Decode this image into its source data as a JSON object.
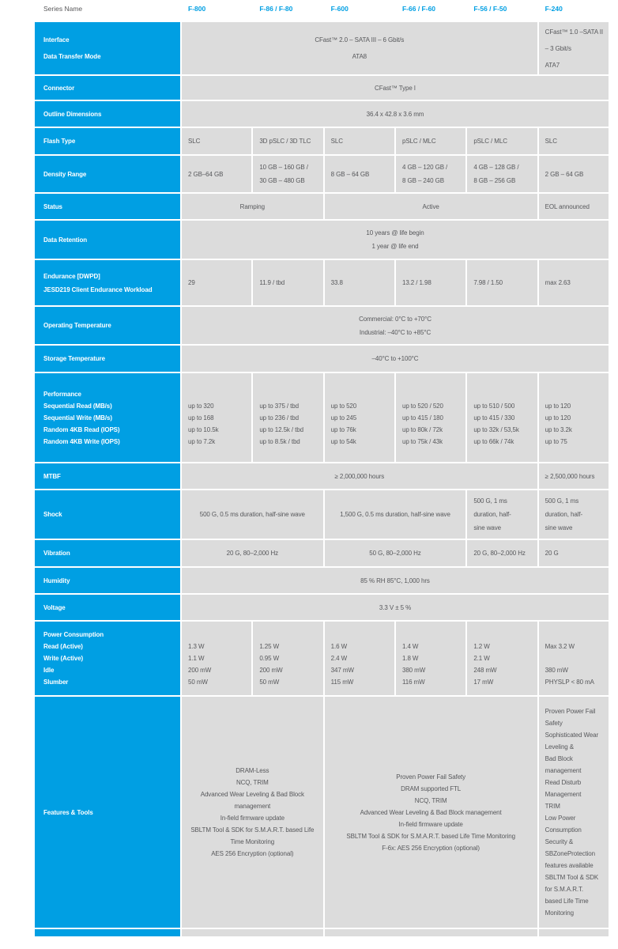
{
  "header": {
    "series_label": "Series Name",
    "columns": [
      "F-800",
      "F-86 / F-80",
      "F-600",
      "F-66 / F-60",
      "F-56 / F-50",
      "F-240"
    ]
  },
  "colors": {
    "brand_blue": "#009fe3",
    "cell_background": "#dcdcdc",
    "cell_text": "#57585b",
    "label_text": "#ffffff",
    "header_gray_text": "#58585a"
  },
  "table": {
    "rows": [
      {
        "id": "interface",
        "label": [
          "Interface",
          "Data Transfer Mode"
        ],
        "cells": [
          {
            "span": 5,
            "lines": [
              "CFast™ 2.0 – SATA III – 6 Gbit/s",
              "ATA8"
            ]
          },
          {
            "span": 1,
            "lines": [
              "CFast™ 1.0 –SATA II",
              "– 3 Gbit/s",
              "ATA7"
            ]
          }
        ]
      },
      {
        "id": "connector",
        "label": [
          "Connector"
        ],
        "cells": [
          {
            "span": 6,
            "lines": [
              "CFast™ Type I"
            ]
          }
        ]
      },
      {
        "id": "outline-dimensions",
        "label": [
          "Outline Dimensions"
        ],
        "cells": [
          {
            "span": 6,
            "lines": [
              "36.4 x 42.8 x 3.6 mm"
            ]
          }
        ]
      },
      {
        "id": "flash-type",
        "label": [
          "Flash Type"
        ],
        "cells": [
          {
            "span": 1,
            "lines": [
              "SLC"
            ]
          },
          {
            "span": 1,
            "lines": [
              "3D pSLC / 3D TLC"
            ]
          },
          {
            "span": 1,
            "lines": [
              "SLC"
            ]
          },
          {
            "span": 1,
            "lines": [
              "pSLC / MLC"
            ]
          },
          {
            "span": 1,
            "lines": [
              "pSLC / MLC"
            ]
          },
          {
            "span": 1,
            "lines": [
              "SLC"
            ]
          }
        ]
      },
      {
        "id": "density-range",
        "label": [
          "Density Range"
        ],
        "cells": [
          {
            "span": 1,
            "lines": [
              "2 GB–64 GB"
            ]
          },
          {
            "span": 1,
            "lines": [
              "10 GB – 160 GB /",
              "30 GB – 480 GB"
            ]
          },
          {
            "span": 1,
            "lines": [
              "8 GB – 64 GB"
            ]
          },
          {
            "span": 1,
            "lines": [
              "4 GB – 120 GB /",
              "8 GB – 240 GB"
            ]
          },
          {
            "span": 1,
            "lines": [
              "4 GB – 128 GB /",
              "8 GB – 256 GB"
            ]
          },
          {
            "span": 1,
            "lines": [
              "2 GB – 64 GB"
            ]
          }
        ]
      },
      {
        "id": "status",
        "label": [
          "Status"
        ],
        "cells": [
          {
            "span": 2,
            "lines": [
              "Ramping"
            ]
          },
          {
            "span": 3,
            "lines": [
              "Active"
            ]
          },
          {
            "span": 1,
            "lines": [
              "EOL announced"
            ]
          }
        ]
      },
      {
        "id": "data-retention",
        "label": [
          "Data Retention"
        ],
        "cells": [
          {
            "span": 6,
            "lines": [
              "10 years @ life begin",
              "1 year @ life end"
            ]
          }
        ]
      },
      {
        "id": "endurance",
        "label": [
          "Endurance [DWPD]",
          "JESD219 Client Endurance Workload"
        ],
        "cells": [
          {
            "span": 1,
            "lines": [
              "29"
            ]
          },
          {
            "span": 1,
            "lines": [
              "11.9 / tbd"
            ]
          },
          {
            "span": 1,
            "lines": [
              "33.8"
            ]
          },
          {
            "span": 1,
            "lines": [
              "13.2 / 1.98"
            ]
          },
          {
            "span": 1,
            "lines": [
              "7.98 / 1.50"
            ]
          },
          {
            "span": 1,
            "lines": [
              "max 2.63"
            ]
          }
        ]
      },
      {
        "id": "operating-temperature",
        "label": [
          "Operating Temperature"
        ],
        "cells": [
          {
            "span": 6,
            "lines": [
              "Commercial: 0°C to +70°C",
              "Industrial: –40°C to +85°C"
            ]
          }
        ]
      },
      {
        "id": "storage-temperature",
        "label": [
          "Storage Temperature"
        ],
        "cells": [
          {
            "span": 6,
            "lines": [
              "–40°C to +100°C"
            ]
          }
        ]
      },
      {
        "id": "performance",
        "label": [
          "Performance",
          "Sequential Read (MB/s)",
          "Sequential Write (MB/s)",
          "Random 4KB Read (IOPS)",
          "Random 4KB Write (IOPS)"
        ],
        "cells": [
          {
            "span": 1,
            "lines": [
              "up to 320",
              "up to 168",
              "up to 10.5k",
              "up to 7.2k"
            ]
          },
          {
            "span": 1,
            "lines": [
              "up to 375 / tbd",
              "up to 236 / tbd",
              "up to 12.5k / tbd",
              "up to 8.5k / tbd"
            ]
          },
          {
            "span": 1,
            "lines": [
              "up to 520",
              "up to 245",
              "up to 76k",
              "up to 54k"
            ]
          },
          {
            "span": 1,
            "lines": [
              "up to 520 / 520",
              "up to 415 / 180",
              "up to 80k / 72k",
              "up to 75k / 43k"
            ]
          },
          {
            "span": 1,
            "lines": [
              "up to 510 / 500",
              "up to 415 / 330",
              "up to 32k / 53,5k",
              "up to 66k / 74k"
            ]
          },
          {
            "span": 1,
            "lines": [
              "up to 120",
              "up to 120",
              "up to 3.2k",
              "up to 75"
            ]
          }
        ]
      },
      {
        "id": "mtbf",
        "label": [
          "MTBF"
        ],
        "cells": [
          {
            "span": 5,
            "lines": [
              "≥ 2,000,000 hours"
            ]
          },
          {
            "span": 1,
            "lines": [
              "≥ 2,500,000 hours"
            ]
          }
        ]
      },
      {
        "id": "shock",
        "label": [
          "Shock"
        ],
        "cells": [
          {
            "span": 2,
            "lines": [
              "500 G, 0.5 ms duration, half-sine wave"
            ]
          },
          {
            "span": 2,
            "lines": [
              "1,500 G, 0.5 ms duration, half-sine wave"
            ]
          },
          {
            "span": 1,
            "lines": [
              "500 G, 1 ms",
              "duration, half-",
              "sine wave"
            ]
          },
          {
            "span": 1,
            "lines": [
              "500 G, 1 ms",
              "duration, half-",
              "sine wave"
            ]
          }
        ]
      },
      {
        "id": "vibration",
        "label": [
          "Vibration"
        ],
        "cells": [
          {
            "span": 2,
            "lines": [
              "20 G, 80–2,000 Hz"
            ]
          },
          {
            "span": 2,
            "lines": [
              "50 G, 80–2,000 Hz"
            ]
          },
          {
            "span": 1,
            "lines": [
              "20 G, 80–2,000 Hz"
            ]
          },
          {
            "span": 1,
            "lines": [
              "20 G"
            ]
          }
        ]
      },
      {
        "id": "humidity",
        "label": [
          "Humidity"
        ],
        "cells": [
          {
            "span": 6,
            "lines": [
              "85 % RH 85°C, 1,000 hrs"
            ]
          }
        ]
      },
      {
        "id": "voltage",
        "label": [
          "Voltage"
        ],
        "cells": [
          {
            "span": 6,
            "lines": [
              "3.3 V ± 5 %"
            ]
          }
        ]
      },
      {
        "id": "power-consumption",
        "label": [
          "Power Consumption",
          "Read (Active)",
          "Write (Active)",
          "Idle",
          "Slumber"
        ],
        "cells": [
          {
            "span": 1,
            "lines": [
              "1.3 W",
              "1.1 W",
              "200 mW",
              "50 mW"
            ]
          },
          {
            "span": 1,
            "lines": [
              "1.25 W",
              "0.95 W",
              "200 mW",
              "50 mW"
            ]
          },
          {
            "span": 1,
            "lines": [
              "1.6 W",
              "2.4 W",
              "347 mW",
              "115 mW"
            ]
          },
          {
            "span": 1,
            "lines": [
              "1.4 W",
              "1.8 W",
              "380 mW",
              "116 mW"
            ]
          },
          {
            "span": 1,
            "lines": [
              "1.2 W",
              "2.1 W",
              "248 mW",
              "17 mW"
            ]
          },
          {
            "span": 1,
            "lines": [
              "Max 3.2 W",
              "",
              "380 mW",
              "PHYSLP < 80 mA"
            ]
          }
        ]
      },
      {
        "id": "features-tools",
        "label": [
          "Features & Tools"
        ],
        "cells": [
          {
            "span": 2,
            "lines": [
              "DRAM-Less",
              "NCQ, TRIM",
              "Advanced Wear Leveling & Bad Block",
              "management",
              "In-field firmware update",
              "SBLTM Tool & SDK for S.M.A.R.T. based Life",
              "Time Monitoring",
              "AES 256 Encryption (optional)"
            ]
          },
          {
            "span": 3,
            "lines": [
              "Proven Power Fail Safety",
              "DRAM supported FTL",
              "NCQ, TRIM",
              "Advanced Wear Leveling & Bad Block management",
              "In-field firmware update",
              "SBLTM Tool & SDK for S.M.A.R.T. based Life Time Monitoring",
              "F-6x: AES 256 Encryption (optional)"
            ]
          },
          {
            "span": 1,
            "lines": [
              "Proven Power Fail",
              "Safety",
              "Sophisticated Wear",
              "Leveling &",
              "Bad Block",
              "management",
              "Read Disturb",
              "Management",
              "TRIM",
              "Low Power",
              "Consumption",
              "Security &",
              "SBZoneProtection",
              "features available",
              "SBLTM Tool & SDK",
              "for S.M.A.R.T.",
              "based Life Time",
              "Monitoring"
            ]
          }
        ]
      },
      {
        "id": "next-row-partial",
        "label": [],
        "cells": [
          {
            "span": 2,
            "lines": []
          },
          {
            "span": 3,
            "lines": []
          },
          {
            "span": 1,
            "lines": []
          }
        ]
      }
    ]
  }
}
